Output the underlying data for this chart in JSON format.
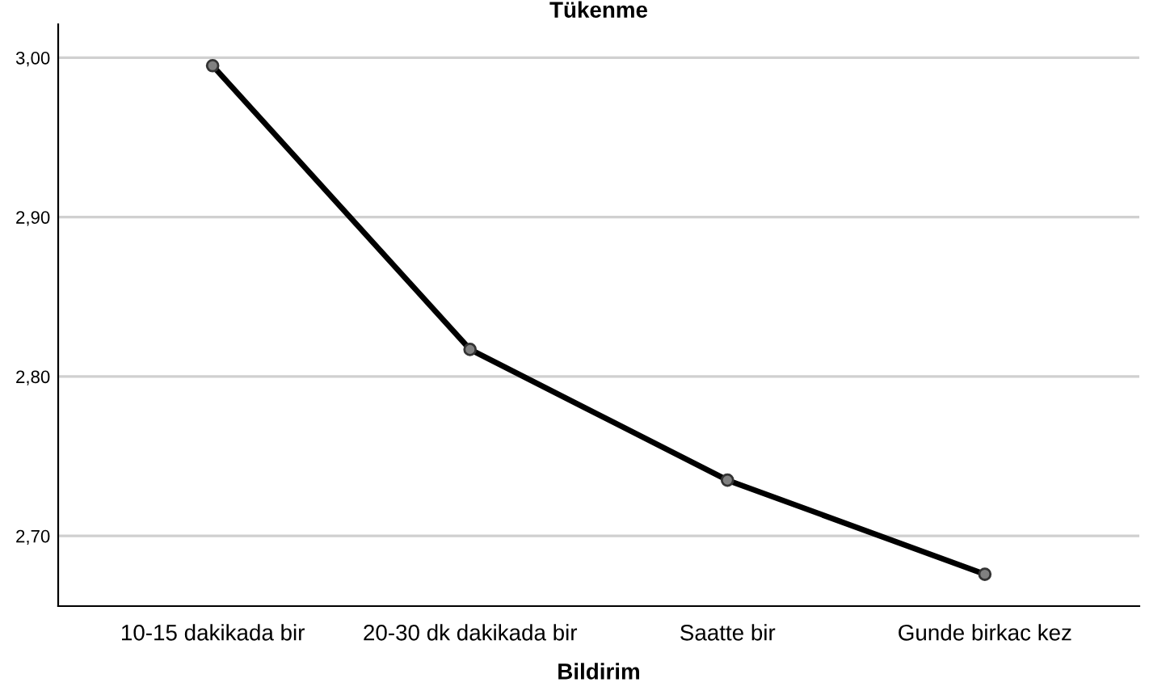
{
  "chart_data": {
    "type": "line",
    "title": "Tükenme",
    "xlabel": "Bildirim",
    "categories": [
      "10-15 dakikada bir",
      "20-30 dk dakikada bir",
      "Saatte bir",
      "Gunde birkac kez"
    ],
    "series": [
      {
        "color": "#000000",
        "values": [
          2.995,
          2.817,
          2.735,
          2.676
        ]
      }
    ],
    "ylim": [
      2.656,
      3.021
    ],
    "yticks": [
      {
        "value": 2.7,
        "label": "2,70"
      },
      {
        "value": 2.8,
        "label": "2,80"
      },
      {
        "value": 2.9,
        "label": "2,90"
      },
      {
        "value": 3.0,
        "label": "3,00"
      }
    ],
    "grid": "y",
    "marker": "circle",
    "line_style": "solid"
  }
}
